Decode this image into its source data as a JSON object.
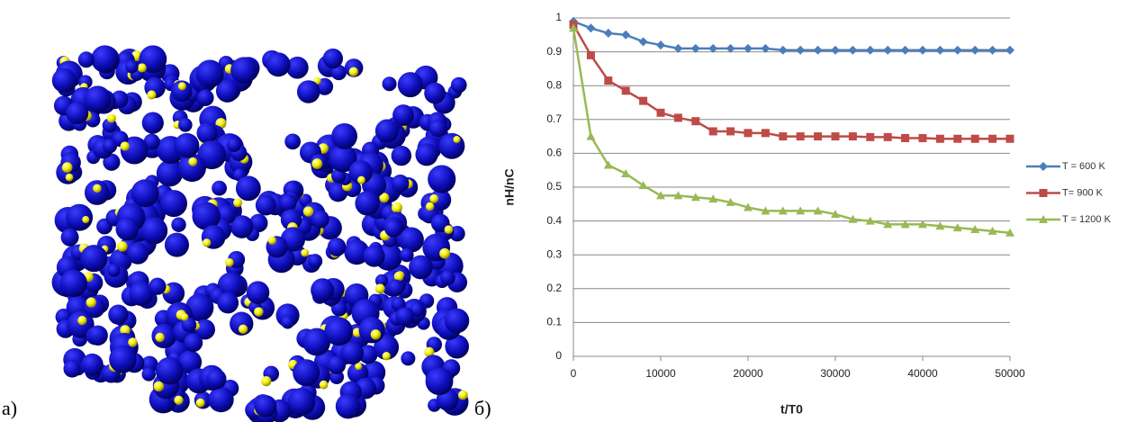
{
  "panel_labels": [
    "а)",
    "б)"
  ],
  "chart_data": {
    "type": "line",
    "ylabel": "nH/nC",
    "xlabel": "t/T0",
    "x": [
      0,
      2000,
      4000,
      6000,
      8000,
      10000,
      12000,
      14000,
      16000,
      18000,
      20000,
      22000,
      24000,
      26000,
      28000,
      30000,
      32000,
      34000,
      36000,
      38000,
      40000,
      42000,
      44000,
      46000,
      48000,
      50000
    ],
    "series": [
      {
        "name": "T = 600 K",
        "color": "#4a7ebb",
        "marker": "diamond",
        "values": [
          0.99,
          0.97,
          0.955,
          0.95,
          0.93,
          0.92,
          0.91,
          0.91,
          0.91,
          0.91,
          0.91,
          0.91,
          0.905,
          0.905,
          0.905,
          0.905,
          0.905,
          0.905,
          0.905,
          0.905,
          0.905,
          0.905,
          0.905,
          0.905,
          0.905,
          0.905
        ]
      },
      {
        "name": "T= 900 K",
        "color": "#be4b48",
        "marker": "square",
        "values": [
          0.98,
          0.89,
          0.815,
          0.785,
          0.755,
          0.72,
          0.705,
          0.695,
          0.665,
          0.665,
          0.66,
          0.66,
          0.65,
          0.65,
          0.65,
          0.65,
          0.65,
          0.648,
          0.648,
          0.645,
          0.645,
          0.643,
          0.643,
          0.643,
          0.643,
          0.643
        ]
      },
      {
        "name": "T = 1200 K",
        "color": "#98b954",
        "marker": "triangle",
        "values": [
          0.97,
          0.65,
          0.565,
          0.54,
          0.505,
          0.475,
          0.475,
          0.47,
          0.465,
          0.455,
          0.44,
          0.43,
          0.43,
          0.43,
          0.43,
          0.42,
          0.405,
          0.4,
          0.39,
          0.39,
          0.39,
          0.385,
          0.38,
          0.375,
          0.37,
          0.365
        ]
      }
    ],
    "xlim": [
      0,
      50000
    ],
    "xticks": [
      0,
      10000,
      20000,
      30000,
      40000,
      50000
    ],
    "ylim": [
      0,
      1
    ],
    "yticks": [
      0,
      0.1,
      0.2,
      0.3,
      0.4,
      0.5,
      0.6,
      0.7,
      0.8,
      0.9,
      1
    ],
    "grid": true,
    "legend": "right"
  }
}
